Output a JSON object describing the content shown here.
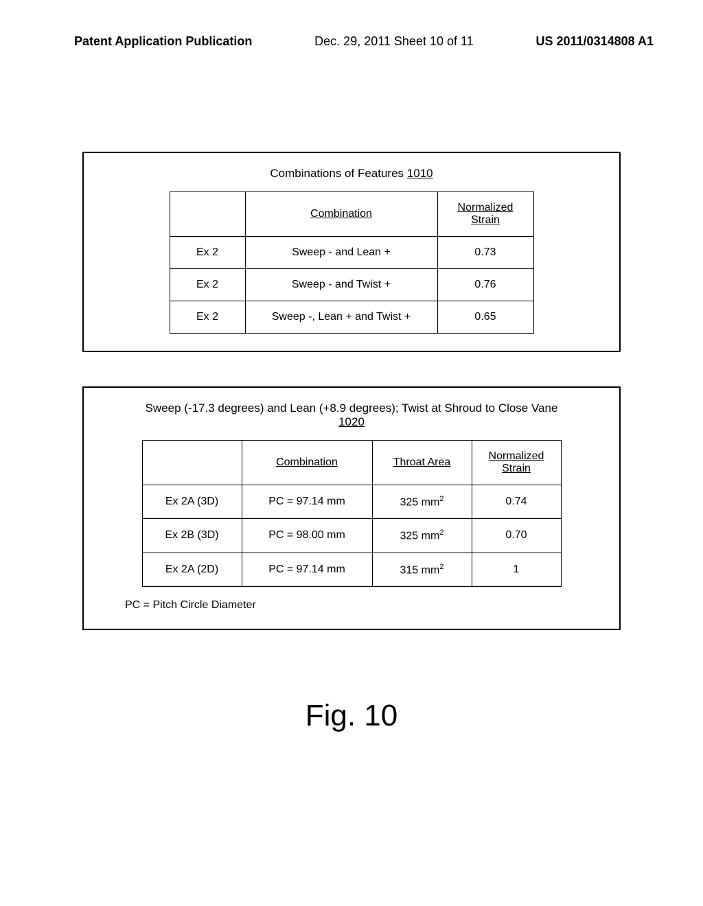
{
  "header": {
    "left": "Patent Application Publication",
    "center": "Dec. 29, 2011  Sheet 10 of 11",
    "right": "US 2011/0314808 A1"
  },
  "table1": {
    "title_prefix": "Combinations of Features ",
    "title_ref": "1010",
    "col_widths": [
      "110",
      "280",
      "140"
    ],
    "headers": [
      "",
      "Combination",
      "Normalized Strain"
    ],
    "rows": [
      [
        "Ex 2",
        "Sweep - and Lean +",
        "0.73"
      ],
      [
        "Ex 2",
        "Sweep - and Twist +",
        "0.76"
      ],
      [
        "Ex 2",
        "Sweep -, Lean + and Twist +",
        "0.65"
      ]
    ]
  },
  "table2": {
    "title_prefix": "Sweep (-17.3 degrees) and Lean (+8.9 degrees); Twist at Shroud to Close Vane",
    "title_ref": "1020",
    "col_widths": [
      "145",
      "190",
      "145",
      "130"
    ],
    "headers": [
      "",
      "Combination",
      "Throat Area",
      "Normalized Strain"
    ],
    "rows": [
      [
        "Ex 2A (3D)",
        "PC = 97.14 mm",
        "325 mm²",
        "0.74"
      ],
      [
        "Ex 2B (3D)",
        "PC = 98.00 mm",
        "325 mm²",
        "0.70"
      ],
      [
        "Ex 2A (2D)",
        "PC = 97.14 mm",
        "315 mm²",
        "1"
      ]
    ],
    "footnote": "PC = Pitch Circle Diameter"
  },
  "figure_label": "Fig. 10"
}
